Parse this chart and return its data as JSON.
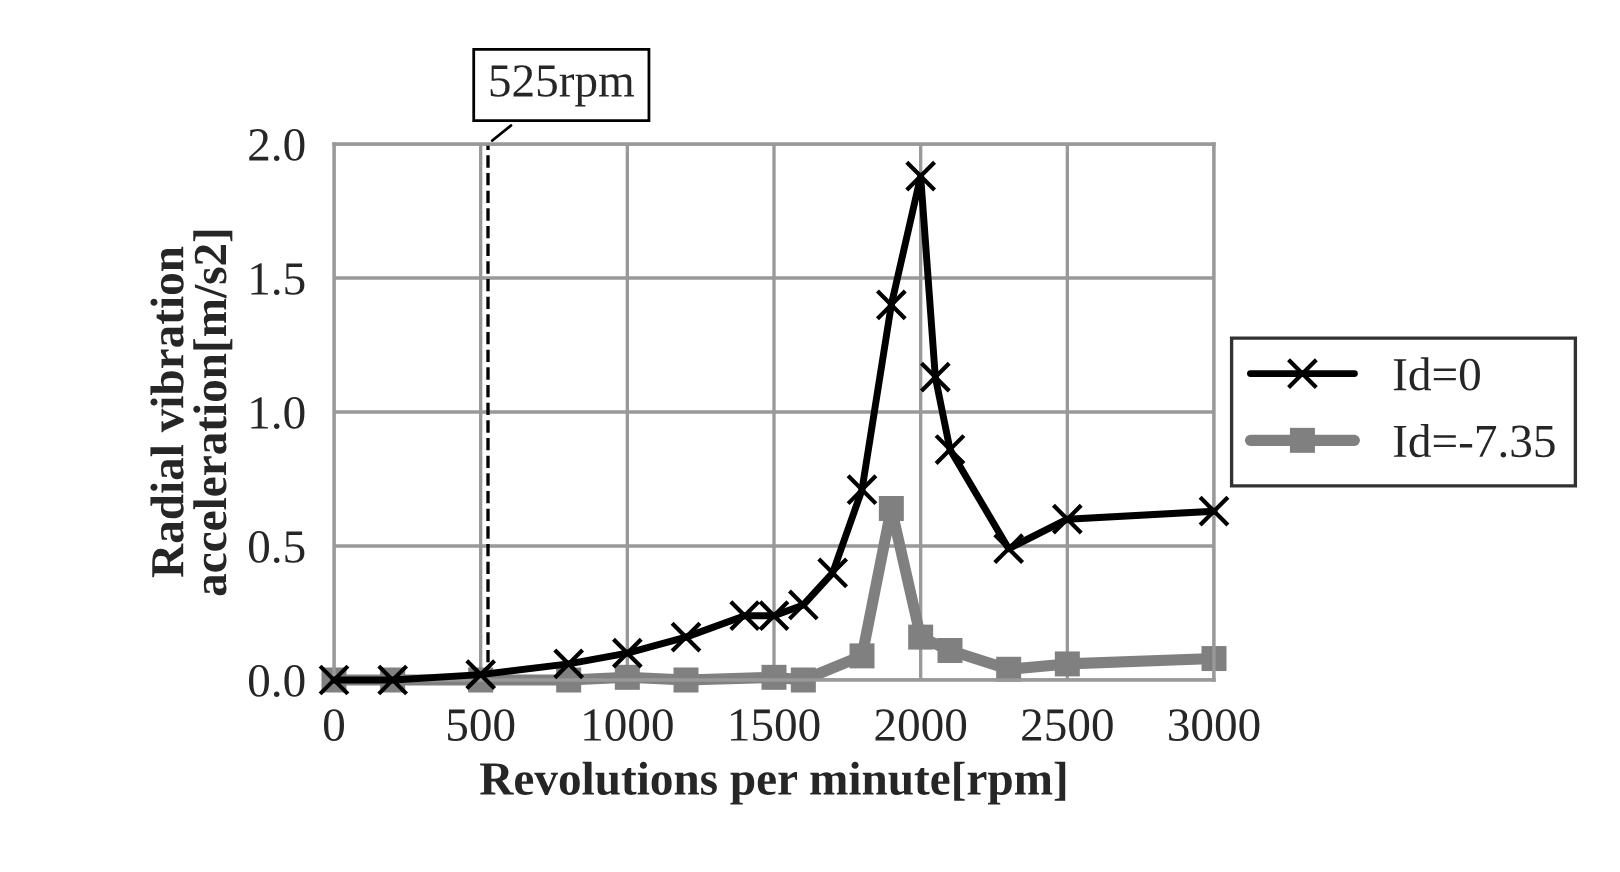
{
  "chart_data": {
    "type": "line",
    "xlabel": "Revolutions per minute[rpm]",
    "ylabel": "Radial vibration\nacceleration[m/s2]",
    "series": [
      {
        "name": "Id=0",
        "color": "#000000",
        "marker": "cross",
        "x": [
          0,
          200,
          500,
          800,
          1000,
          1200,
          1400,
          1500,
          1600,
          1700,
          1800,
          1900,
          2000,
          2050,
          2100,
          2300,
          2500,
          3000
        ],
        "values": [
          0.0,
          0.0,
          0.02,
          0.06,
          0.1,
          0.16,
          0.24,
          0.24,
          0.28,
          0.4,
          0.71,
          1.4,
          1.88,
          1.13,
          0.86,
          0.49,
          0.6,
          0.63
        ]
      },
      {
        "name": "Id=-7.35",
        "color": "#808080",
        "marker": "square",
        "x": [
          0,
          200,
          500,
          800,
          1000,
          1200,
          1500,
          1600,
          1800,
          1900,
          2000,
          2100,
          2300,
          2500,
          3000
        ],
        "values": [
          0.0,
          0.0,
          0.0,
          0.0,
          0.01,
          0.0,
          0.01,
          0.0,
          0.09,
          0.64,
          0.16,
          0.11,
          0.04,
          0.06,
          0.08
        ]
      }
    ],
    "xlim": [
      0,
      3000
    ],
    "xticks": [
      0,
      500,
      1000,
      1500,
      2000,
      2500,
      3000
    ],
    "ylim": [
      0,
      2.0
    ],
    "yticks": [
      {
        "value": 0,
        "label": "0.0"
      },
      {
        "value": 0.5,
        "label": "0.5"
      },
      {
        "value": 1.0,
        "label": "1.0"
      },
      {
        "value": 1.5,
        "label": "1.5"
      },
      {
        "value": 2.0,
        "label": "2.0"
      }
    ],
    "ref_lines": [
      {
        "axis": "x",
        "value": 525,
        "label": "525rpm",
        "color": "#000000",
        "line_style": "dashed"
      }
    ],
    "grid": true,
    "legend": "right"
  }
}
